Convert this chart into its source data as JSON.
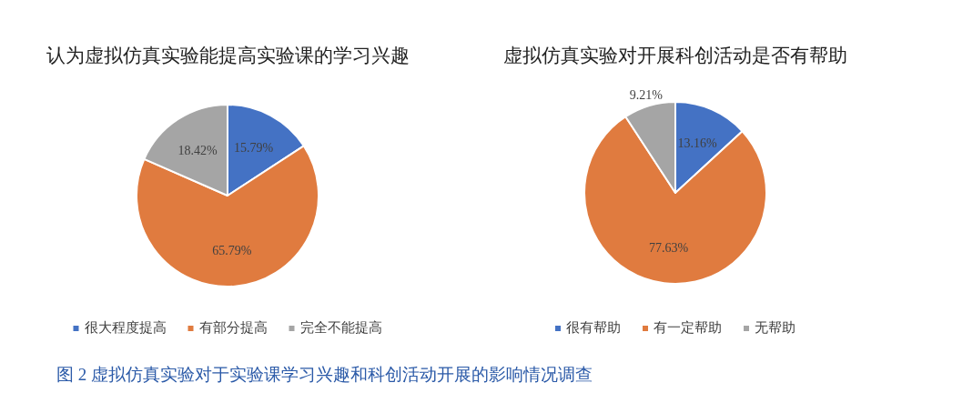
{
  "chart_data": [
    {
      "type": "pie",
      "title": "认为虚拟仿真实验能提高实验课的学习兴趣",
      "categories": [
        "很大程度提高",
        "有部分提高",
        "完全不能提高"
      ],
      "values": [
        15.79,
        65.79,
        18.42
      ],
      "value_labels": [
        "15.79%",
        "65.79%",
        "18.42%"
      ],
      "colors": [
        "#4472c4",
        "#e07b3f",
        "#a5a5a5"
      ],
      "legend": "bottom",
      "annotations": [
        "图 2 虚拟仿真实验对于实验课学习兴趣和科创活动开展的影响情况调查"
      ]
    },
    {
      "type": "pie",
      "title": "虚拟仿真实验对开展科创活动是否有帮助",
      "categories": [
        "很有帮助",
        "有一定帮助",
        "无帮助"
      ],
      "values": [
        13.16,
        77.63,
        9.21
      ],
      "value_labels": [
        "13.16%",
        "77.63%",
        "9.21%"
      ],
      "colors": [
        "#4472c4",
        "#e07b3f",
        "#a5a5a5"
      ],
      "legend": "bottom"
    }
  ]
}
